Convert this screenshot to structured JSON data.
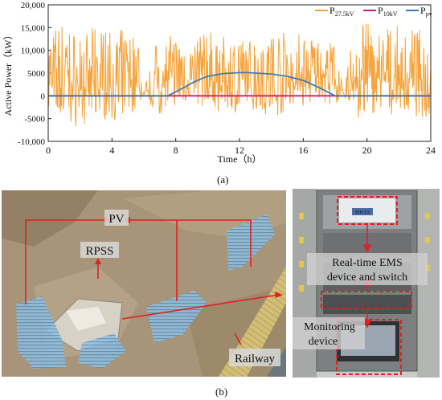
{
  "chart_data": {
    "type": "line",
    "xlabel": "Time（h）",
    "ylabel": "Active Power（kW）",
    "xlim": [
      0,
      24
    ],
    "ylim": [
      -10000,
      20000
    ],
    "xticks": [
      0,
      4,
      8,
      12,
      16,
      20,
      24
    ],
    "yticks": [
      -10000,
      -5000,
      0,
      5000,
      10000,
      15000,
      20000
    ],
    "ytick_labels": [
      "-10,000",
      "-5000",
      "0",
      "5000",
      "10,000",
      "15,000",
      "20,000"
    ],
    "legend_position": "top-right",
    "series": [
      {
        "name": "P27.5kV",
        "legend": {
          "main": "P",
          "sub": "27.5kV"
        },
        "color": "#f5a33b",
        "style": "noisy",
        "description_points": {
          "x": [
            0,
            1,
            2,
            3,
            4,
            5,
            5.7,
            5.9,
            7,
            8,
            9,
            10,
            11,
            12,
            13,
            14,
            15,
            16,
            17,
            18,
            18.6,
            19,
            20,
            21,
            22,
            23,
            24
          ],
          "y_max": [
            15000,
            16500,
            13000,
            15500,
            14000,
            15000,
            13000,
            0,
            14500,
            13000,
            11000,
            15000,
            13000,
            12500,
            13000,
            15000,
            14000,
            14000,
            13500,
            12000,
            0,
            18500,
            16000,
            15000,
            15500,
            15000,
            14000
          ],
          "y_min": [
            -4000,
            -6000,
            -7000,
            -5000,
            -5500,
            -4000,
            -3500,
            0,
            -4500,
            -2000,
            -1000,
            -3000,
            -4000,
            -3500,
            -3000,
            -5000,
            -3500,
            -2500,
            -1500,
            -2000,
            0,
            -5000,
            -5500,
            -4000,
            -5000,
            -4500,
            -5000
          ]
        }
      },
      {
        "name": "P10kV",
        "legend": {
          "main": "P",
          "sub": "10kV"
        },
        "color": "#d6177a",
        "style": "flat",
        "x": [
          0,
          24
        ],
        "y": [
          0,
          0
        ]
      },
      {
        "name": "Ppv",
        "legend": {
          "main": "P",
          "sub": "pv"
        },
        "color": "#3d7bb6",
        "style": "smooth",
        "x": [
          0,
          7.5,
          8,
          8.5,
          9,
          9.5,
          10,
          11,
          12,
          12.5,
          13,
          14,
          15,
          16,
          17,
          17.5,
          18,
          24
        ],
        "y": [
          0,
          0,
          900,
          1800,
          2800,
          3600,
          4300,
          4900,
          5100,
          5100,
          5000,
          4800,
          4300,
          3400,
          1800,
          900,
          0,
          0
        ]
      }
    ]
  },
  "panel_labels": {
    "a": "(a)",
    "b": "(b)"
  },
  "photo_labels": {
    "pv": "PV",
    "rpss": "RPSS",
    "railway": "Railway",
    "ems_line1": "Real-time EMS",
    "ems_line2": "device and switch",
    "monitoring_line1": "Monitoring",
    "monitoring_line2": "device",
    "device_badge": "MICUJ"
  },
  "colors": {
    "annotation_red": "#e02020",
    "pv_panel_fill": "#7fb3d6",
    "terrain": "#9c8a6e",
    "railway_band": "#d9c87a"
  }
}
